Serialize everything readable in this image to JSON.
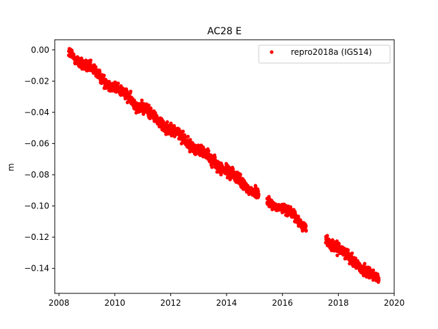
{
  "chart_data": {
    "type": "scatter",
    "title": "AC28 E",
    "xlabel": "",
    "ylabel": "m",
    "xlim": [
      2007.85,
      2020.0
    ],
    "ylim": [
      -0.156,
      0.0065
    ],
    "xticks": [
      2008,
      2010,
      2012,
      2014,
      2016,
      2018,
      2020
    ],
    "xtick_labels": [
      "2008",
      "2010",
      "2012",
      "2014",
      "2016",
      "2018",
      "2020"
    ],
    "yticks": [
      0.0,
      -0.02,
      -0.04,
      -0.06,
      -0.08,
      -0.1,
      -0.12,
      -0.14
    ],
    "ytick_labels": [
      "0.00",
      "−0.02",
      "−0.04",
      "−0.06",
      "−0.08",
      "−0.10",
      "−0.12",
      "−0.14"
    ],
    "grid": false,
    "legend_position": "top-right",
    "series": [
      {
        "name": "repro2018a (IGS14)",
        "color": "#ff0000",
        "marker": "circle",
        "segments": [
          {
            "x_start": 2008.35,
            "x_end": 2015.15,
            "y_start": -0.002,
            "y_end": -0.093,
            "noise": 0.0018
          },
          {
            "x_start": 2015.45,
            "x_end": 2016.0,
            "y_start": -0.096,
            "y_end": -0.102,
            "noise": 0.0015
          },
          {
            "x_start": 2016.0,
            "x_end": 2016.85,
            "y_start": -0.101,
            "y_end": -0.113,
            "noise": 0.0015
          },
          {
            "x_start": 2017.55,
            "x_end": 2019.45,
            "y_start": -0.121,
            "y_end": -0.148,
            "noise": 0.0016
          }
        ]
      }
    ]
  }
}
